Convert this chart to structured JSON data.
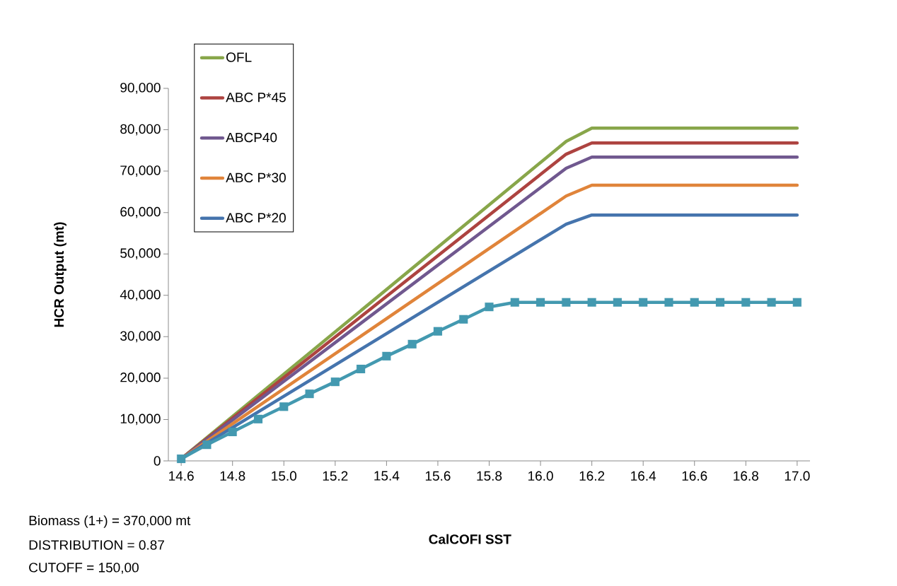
{
  "chart_data": {
    "type": "line",
    "xlabel": "CalCOFI SST",
    "ylabel": "HCR Output (mt)",
    "annotations": [
      "Biomass (1+) = 370,000 mt",
      "DISTRIBUTION = 0.87",
      "CUTOFF = 150,00"
    ],
    "x": [
      14.6,
      14.7,
      14.8,
      14.9,
      15.0,
      15.1,
      15.2,
      15.3,
      15.4,
      15.5,
      15.6,
      15.7,
      15.8,
      15.9,
      16.0,
      16.1,
      16.2,
      16.3,
      16.4,
      16.5,
      16.6,
      16.7,
      16.8,
      16.9,
      17.0
    ],
    "series": [
      {
        "name": "OFL",
        "color": "#88a64a",
        "x": [
          14.6,
          16.1,
          16.2,
          17.0
        ],
        "values": [
          500,
          77200,
          80400,
          80400
        ]
      },
      {
        "name": "ABC P*45",
        "color": "#ad4340",
        "x": [
          14.6,
          16.1,
          16.2,
          17.0
        ],
        "values": [
          500,
          74100,
          76800,
          76800
        ]
      },
      {
        "name": "ABCP40",
        "color": "#70588f",
        "x": [
          14.6,
          16.1,
          16.2,
          17.0
        ],
        "values": [
          500,
          70700,
          73400,
          73400
        ]
      },
      {
        "name": "ABC P*30",
        "color": "#e0843a",
        "x": [
          14.6,
          16.1,
          16.2,
          17.0
        ],
        "values": [
          500,
          64000,
          66600,
          66600
        ]
      },
      {
        "name": "ABC P*20",
        "color": "#4574ad",
        "x": [
          14.6,
          16.1,
          16.2,
          17.0
        ],
        "values": [
          500,
          57200,
          59400,
          59400
        ]
      },
      {
        "color": "#4399b0",
        "marker": "square",
        "values": [
          500,
          3900,
          7000,
          10100,
          13100,
          16200,
          19100,
          22200,
          25300,
          28200,
          31300,
          34200,
          37200,
          38300,
          38300,
          38300,
          38300,
          38300,
          38300,
          38300,
          38300,
          38300,
          38300,
          38300,
          38300
        ]
      }
    ],
    "xlim": [
      14.55,
      17.05
    ],
    "xticks": [
      {
        "value": 14.6,
        "label": "14.6"
      },
      {
        "value": 14.8,
        "label": "14.8"
      },
      {
        "value": 15.0,
        "label": "15.0"
      },
      {
        "value": 15.2,
        "label": "15.2"
      },
      {
        "value": 15.4,
        "label": "15.4"
      },
      {
        "value": 15.6,
        "label": "15.6"
      },
      {
        "value": 15.8,
        "label": "15.8"
      },
      {
        "value": 16.0,
        "label": "16.0"
      },
      {
        "value": 16.2,
        "label": "16.2"
      },
      {
        "value": 16.4,
        "label": "16.4"
      },
      {
        "value": 16.6,
        "label": "16.6"
      },
      {
        "value": 16.8,
        "label": "16.8"
      },
      {
        "value": 17.0,
        "label": "17.0"
      }
    ],
    "ylim": [
      0,
      90000
    ],
    "yticks": [
      0,
      {
        "value": 10000,
        "label": "10,000"
      },
      {
        "value": 20000,
        "label": "20,000"
      },
      {
        "value": 30000,
        "label": "30,000"
      },
      {
        "value": 40000,
        "label": "40,000"
      },
      {
        "value": 50000,
        "label": "50,000"
      },
      {
        "value": 60000,
        "label": "60,000"
      },
      {
        "value": 70000,
        "label": "70,000"
      },
      {
        "value": 80000,
        "label": "80,000"
      },
      {
        "value": 90000,
        "label": "90,000"
      }
    ],
    "legend": "top left",
    "marker": "none",
    "line_style": "solid"
  }
}
